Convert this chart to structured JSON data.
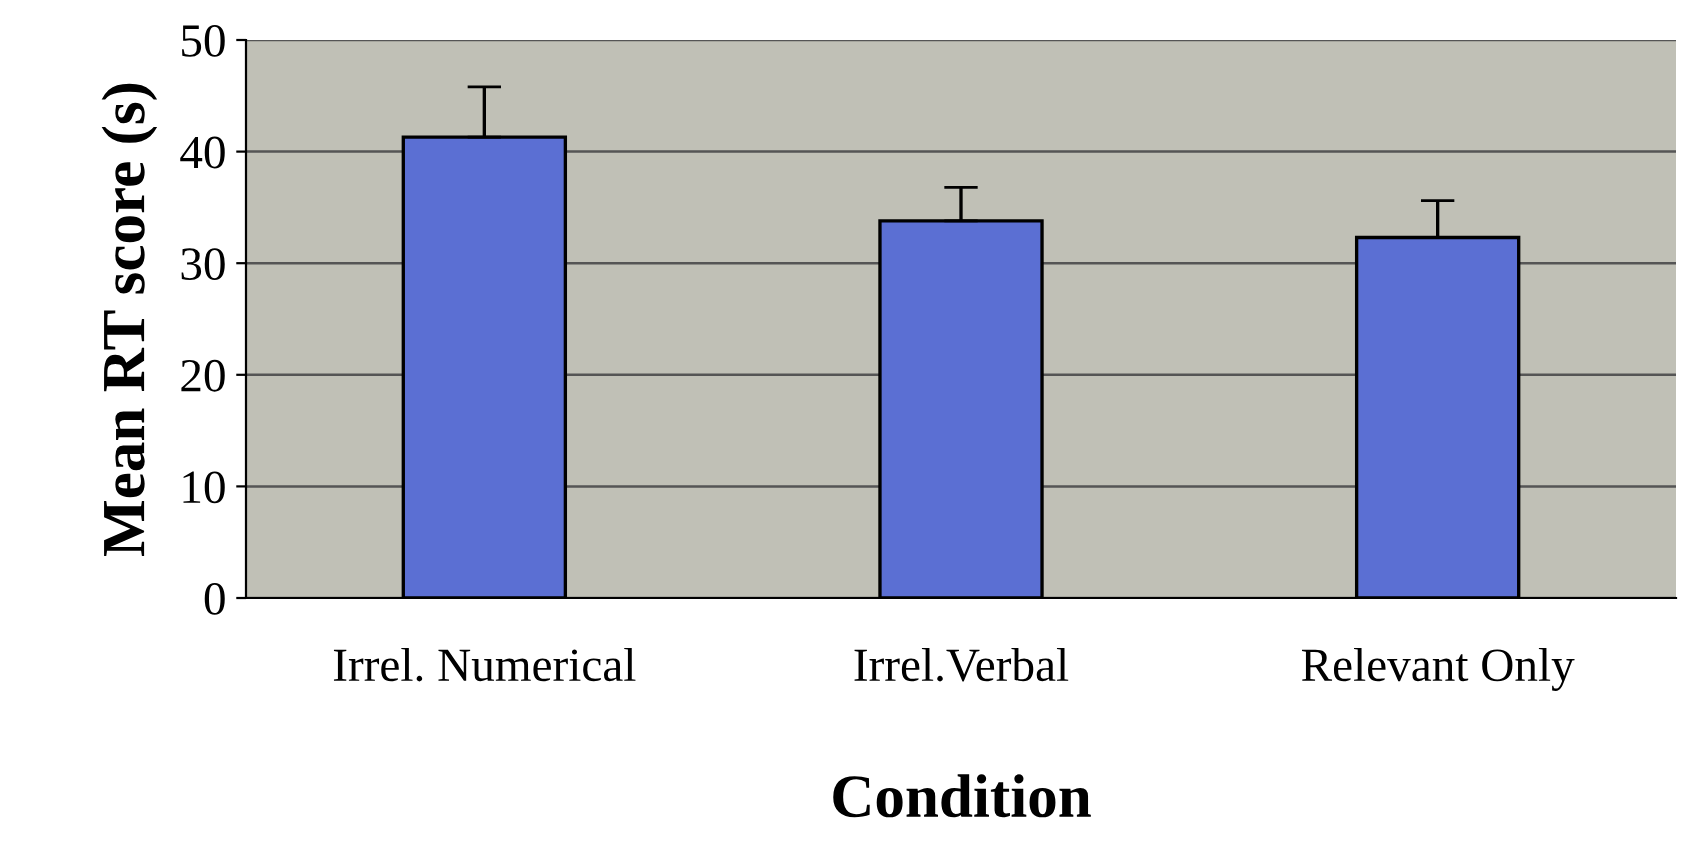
{
  "chart_data": {
    "type": "bar",
    "xlabel": "Condition",
    "ylabel": "Mean RT score (s)",
    "categories": [
      "Irrel. Numerical",
      "Irrel.Verbal",
      "Relevant Only"
    ],
    "values": [
      41.3,
      33.8,
      32.3
    ],
    "errors": [
      [
        41.3,
        45.8
      ],
      [
        33.8,
        36.8
      ],
      [
        32.3,
        35.6
      ]
    ],
    "color": "#5b6fd3",
    "ylim": [
      0,
      50
    ],
    "yticks": [
      0,
      10,
      20,
      30,
      40,
      50
    ],
    "grid": "y"
  }
}
